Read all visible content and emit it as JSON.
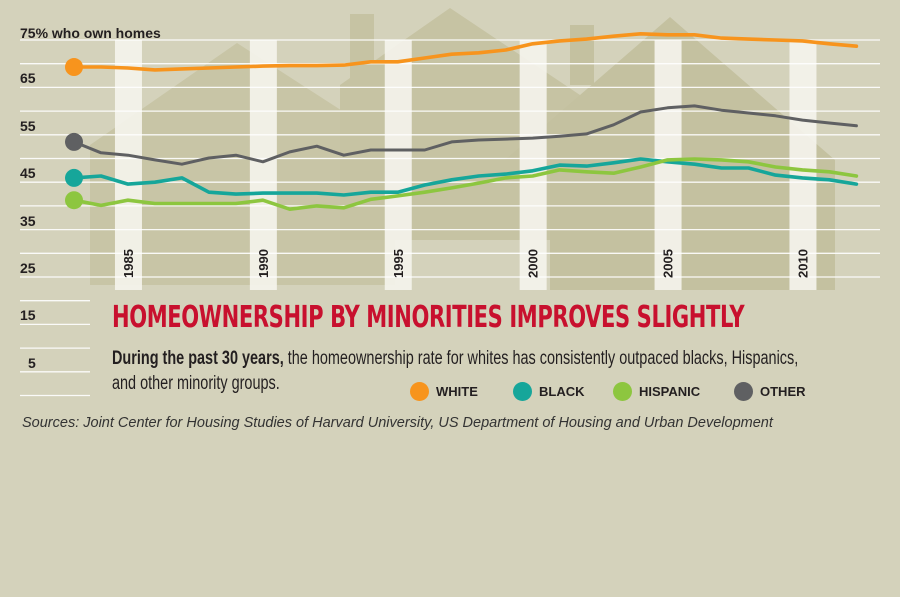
{
  "chart_data": {
    "type": "line",
    "title": "HOMEOWNERSHIP BY MINORITIES IMPROVES SLIGHTLY",
    "subtitle_bold": "During the past 30 years,",
    "subtitle": " the homeownership rate for whites has consistently outpaced blacks, Hispanics, and other minority groups.",
    "ylabel": "75% who own homes",
    "source": "Sources: Joint Center for Housing Studies of Harvard University, US Department of Housing and Urban Development",
    "ylim": [
      0,
      75
    ],
    "y_ticks": [
      "65",
      "55",
      "45",
      "35",
      "25",
      "15",
      "5"
    ],
    "y_tick_values": [
      65,
      55,
      45,
      35,
      25,
      15,
      5
    ],
    "xlim": [
      1983,
      2012
    ],
    "x_ticks": [
      "1985",
      "1990",
      "1995",
      "2000",
      "2005",
      "2010"
    ],
    "x_tick_values": [
      1985,
      1990,
      1995,
      2000,
      2005,
      2010
    ],
    "grid": true,
    "legend_position": "bottom",
    "x": [
      1983,
      1984,
      1985,
      1986,
      1987,
      1988,
      1989,
      1990,
      1991,
      1992,
      1993,
      1994,
      1995,
      1996,
      1997,
      1998,
      1999,
      2000,
      2001,
      2002,
      2003,
      2004,
      2005,
      2006,
      2007,
      2008,
      2009,
      2010,
      2011,
      2012
    ],
    "series": [
      {
        "name": "WHITE",
        "color": "#f7941d",
        "values": [
          69.3,
          69.3,
          69.1,
          68.7,
          68.9,
          69.1,
          69.3,
          69.5,
          69.6,
          69.6,
          69.7,
          70.4,
          70.4,
          71.2,
          72.0,
          72.3,
          72.9,
          74.2,
          74.8,
          75.2,
          75.8,
          76.3,
          76.1,
          76.1,
          75.4,
          75.2,
          75.0,
          74.8,
          74.2,
          73.7
        ]
      },
      {
        "name": "BLACK",
        "color": "#16a69a",
        "values": [
          45.9,
          46.3,
          44.6,
          45.0,
          45.9,
          42.9,
          42.5,
          42.7,
          42.7,
          42.7,
          42.3,
          42.9,
          42.9,
          44.4,
          45.5,
          46.3,
          46.7,
          47.4,
          48.6,
          48.4,
          49.1,
          49.9,
          49.3,
          48.8,
          48.0,
          48.0,
          46.5,
          45.9,
          45.5,
          44.6
        ]
      },
      {
        "name": "HISPANIC",
        "color": "#8dc63f",
        "values": [
          41.2,
          40.1,
          41.2,
          40.5,
          40.5,
          40.5,
          40.5,
          41.2,
          39.3,
          40.0,
          39.6,
          41.4,
          42.1,
          42.9,
          43.8,
          44.8,
          45.9,
          46.3,
          47.6,
          47.2,
          46.9,
          48.2,
          49.7,
          49.9,
          49.7,
          49.3,
          48.2,
          47.6,
          47.2,
          46.3
        ]
      },
      {
        "name": "OTHER",
        "color": "#5f6062",
        "values": [
          53.5,
          51.2,
          50.7,
          49.7,
          48.8,
          50.1,
          50.7,
          49.3,
          51.4,
          52.6,
          50.7,
          51.8,
          51.8,
          51.8,
          53.5,
          53.9,
          54.1,
          54.3,
          54.7,
          55.2,
          57.1,
          59.8,
          60.7,
          61.1,
          60.2,
          59.6,
          59.0,
          58.1,
          57.5,
          56.9
        ]
      }
    ]
  },
  "colors": {
    "background": "#d4d2bb",
    "house": "#c4c1a0",
    "title": "#c8102e"
  }
}
